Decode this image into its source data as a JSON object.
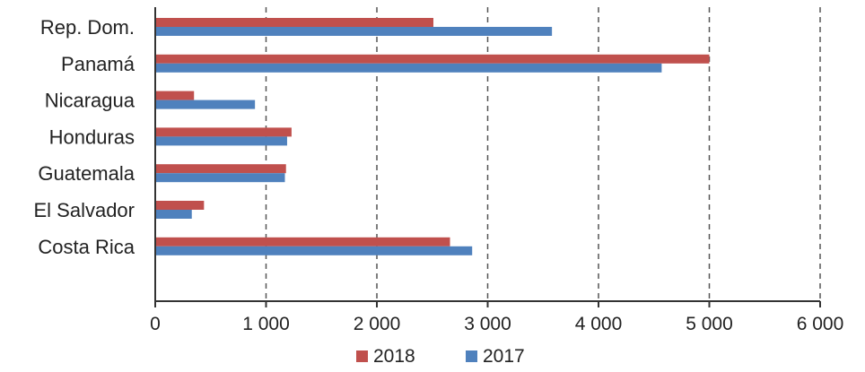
{
  "chart_data": {
    "type": "bar",
    "orientation": "horizontal",
    "categories": [
      "Rep. Dom.",
      "Panamá",
      "Nicaragua",
      "Honduras",
      "Guatemala",
      "El Salvador",
      "Costa Rica"
    ],
    "series": [
      {
        "name": "2018",
        "color": "#C0504D",
        "values": [
          2510,
          5000,
          350,
          1230,
          1180,
          440,
          2660
        ]
      },
      {
        "name": "2017",
        "color": "#4F81BD",
        "values": [
          3580,
          4570,
          900,
          1190,
          1170,
          330,
          2860
        ]
      }
    ],
    "xlim": [
      0,
      6000
    ],
    "xticks": [
      0,
      1000,
      2000,
      3000,
      4000,
      5000,
      6000
    ],
    "xtick_labels": [
      "0",
      "1 000",
      "2 000",
      "3 000",
      "4 000",
      "5 000",
      "6 000"
    ],
    "grid": "vertical dashed",
    "legend_position": "bottom"
  }
}
